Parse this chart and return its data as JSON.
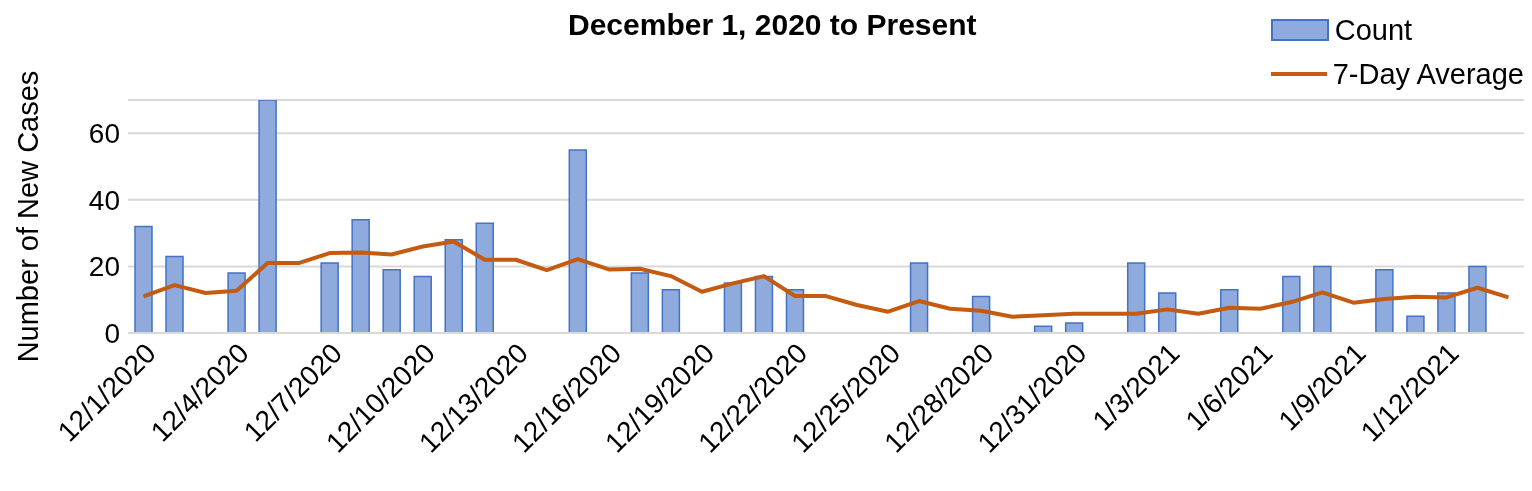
{
  "chart_data": {
    "type": "bar",
    "title": "December 1, 2020 to Present",
    "ylabel": "Number of New Cases",
    "categories": [
      "12/1/2020",
      null,
      null,
      "12/4/2020",
      null,
      null,
      "12/7/2020",
      null,
      null,
      "12/10/2020",
      null,
      null,
      "12/13/2020",
      null,
      null,
      "12/16/2020",
      null,
      null,
      "12/19/2020",
      null,
      null,
      "12/22/2020",
      null,
      null,
      "12/25/2020",
      null,
      null,
      "12/28/2020",
      null,
      null,
      "12/31/2020",
      null,
      null,
      "1/3/2021",
      null,
      null,
      "1/6/2021",
      null,
      null,
      "1/9/2021",
      null,
      null,
      "1/12/2021",
      null,
      null
    ],
    "series": [
      {
        "name": "Count",
        "color": "#8faadc",
        "values": [
          32,
          23,
          0,
          18,
          70,
          0,
          21,
          34,
          19,
          17,
          28,
          33,
          0,
          0,
          55,
          0,
          18,
          13,
          0,
          15,
          17,
          13,
          0,
          0,
          0,
          21,
          0,
          11,
          0,
          2,
          3,
          0,
          21,
          12,
          0,
          13,
          0,
          17,
          20,
          0,
          19,
          5,
          12,
          20,
          0
        ]
      },
      {
        "type": "line",
        "name": "7-Day Average",
        "color": "#c55a11",
        "values": [
          11,
          14.4,
          12,
          12.7,
          21,
          21,
          24,
          24.2,
          23.6,
          26,
          27.5,
          22,
          22,
          18.9,
          22.2,
          19.1,
          19.3,
          17.1,
          12.4,
          14.9,
          17.1,
          11.1,
          11.1,
          8.4,
          6.4,
          9.6,
          7.3,
          6.7,
          4.9,
          5.3,
          5.8,
          5.8,
          5.8,
          7.1,
          5.8,
          7.6,
          7.3,
          9.3,
          12.2,
          9.1,
          10.2,
          10.9,
          10.7,
          13.6,
          10.7
        ]
      }
    ],
    "ylim": [
      0,
      70
    ],
    "yticks": [
      0,
      20,
      40,
      60
    ],
    "grid": "y",
    "legend": "top right",
    "marker": "none"
  }
}
